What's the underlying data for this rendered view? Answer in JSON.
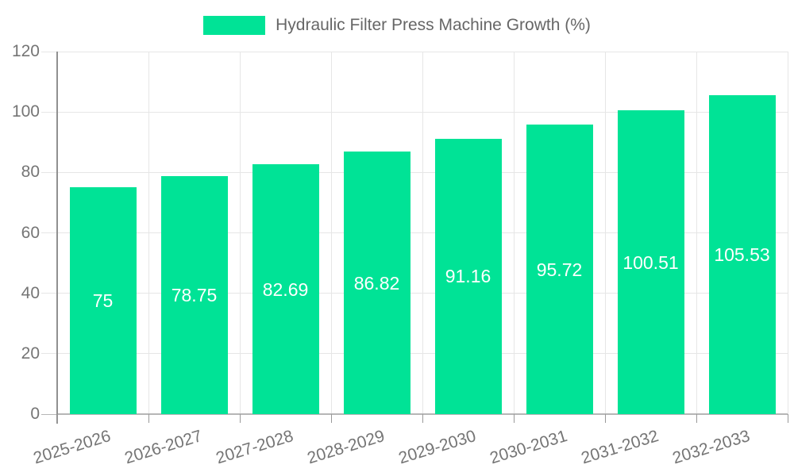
{
  "legend": {
    "label": "Hydraulic Filter Press Machine Growth (%)"
  },
  "colors": {
    "bar": "#00e396",
    "bar_label_text": "#ffffff",
    "axis_text": "#757575",
    "legend_text": "#666666",
    "grid_line": "#e6e6e6",
    "y_axis_line": "#909090",
    "x_axis_line": "#b6b6b6",
    "x_tick": "#999999",
    "background": "#ffffff"
  },
  "chart_data": {
    "type": "bar",
    "title": "",
    "series_name": "Hydraulic Filter Press Machine Growth (%)",
    "categories": [
      "2025-2026",
      "2026-2027",
      "2027-2028",
      "2028-2029",
      "2029-2030",
      "2030-2031",
      "2031-2032",
      "2032-2033"
    ],
    "values": [
      75,
      78.75,
      82.69,
      86.82,
      91.16,
      95.72,
      100.51,
      105.53
    ],
    "bar_labels": [
      "75",
      "78.75",
      "82.69",
      "86.82",
      "91.16",
      "95.72",
      "100.51",
      "105.53"
    ],
    "xlabel": "",
    "ylabel": "",
    "ylim": [
      0,
      120
    ],
    "yticks": [
      0,
      20,
      40,
      60,
      80,
      100,
      120
    ],
    "grid": true,
    "legend_position": "top-center",
    "x_label_rotation_deg": -17,
    "value_label_position": "inside-center"
  }
}
